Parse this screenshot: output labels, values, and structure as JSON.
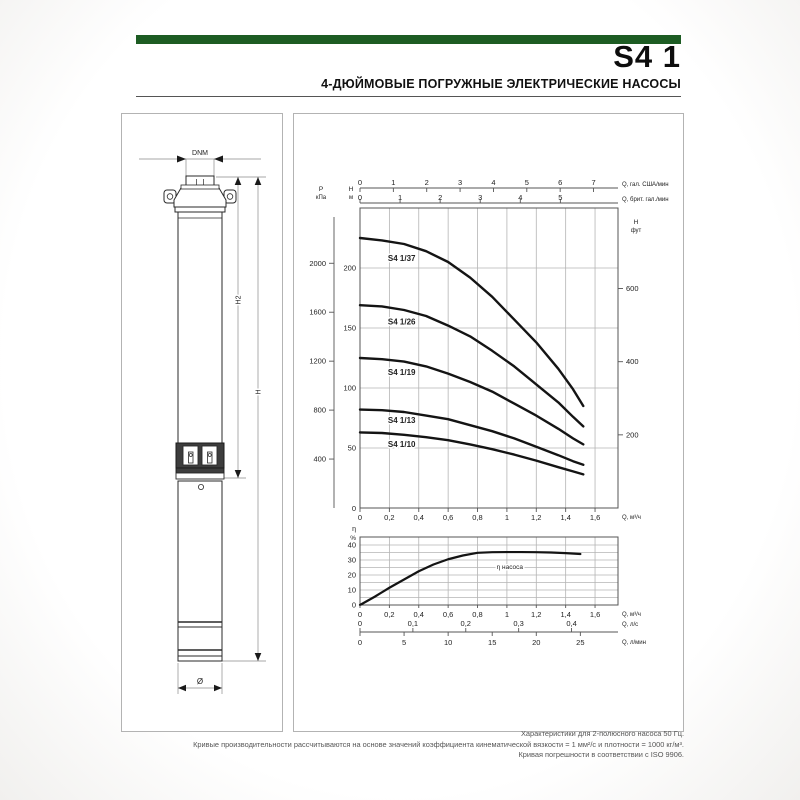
{
  "header": {
    "product": "S4 1",
    "subtitle": "4-ДЮЙМОВЫЕ ПОГРУЖНЫЕ ЭЛЕКТРИЧЕСКИЕ НАСОСЫ",
    "accent_color": "#1d5c23"
  },
  "drawing": {
    "dim_dnm": "DNM",
    "dim_h2": "H2",
    "dim_h": "H",
    "dim_diameter": "Ø"
  },
  "chart_data": [
    {
      "type": "line",
      "title": "Напорные характеристики Q-H",
      "x_axis": {
        "label": "Q, м³/ч",
        "range": [
          0,
          1.756
        ],
        "ticks": [
          {
            "v": 0,
            "t": "0"
          },
          {
            "v": 0.2,
            "t": "0,2"
          },
          {
            "v": 0.4,
            "t": "0,4"
          },
          {
            "v": 0.6,
            "t": "0,6"
          },
          {
            "v": 0.8,
            "t": "0,8"
          },
          {
            "v": 1.0,
            "t": "1"
          },
          {
            "v": 1.2,
            "t": "1,2"
          },
          {
            "v": 1.4,
            "t": "1,4"
          },
          {
            "v": 1.6,
            "t": "1,6"
          }
        ]
      },
      "x_axis_top_us": {
        "label": "Q, гал. США/мин",
        "to_m3h": 0.2271,
        "ticks": [
          0,
          1,
          2,
          3,
          4,
          5,
          6,
          7
        ]
      },
      "x_axis_top_imp": {
        "label": "Q, брит. гал./мин",
        "to_m3h": 0.2728,
        "ticks": [
          0,
          1,
          2,
          3,
          4,
          5
        ]
      },
      "y_axis_m": {
        "label": [
          "H",
          "м"
        ],
        "range": [
          0,
          250
        ],
        "ticks": [
          50,
          100,
          150,
          200
        ],
        "zero": "0"
      },
      "y_axis_kpa": {
        "label": [
          "P",
          "кПа"
        ],
        "to_m": 0.10197,
        "ticks": [
          400,
          800,
          1200,
          1600,
          2000
        ]
      },
      "y_axis_ft": {
        "label": [
          "H",
          "фут"
        ],
        "to_m": 0.3048,
        "ticks": [
          200,
          400,
          600
        ]
      },
      "grid": true,
      "series": [
        {
          "name": "S4 1/37",
          "label_at": [
            0.19,
            206
          ],
          "points": [
            [
              0,
              225
            ],
            [
              0.15,
              223
            ],
            [
              0.3,
              220
            ],
            [
              0.45,
              214
            ],
            [
              0.6,
              205
            ],
            [
              0.75,
              192
            ],
            [
              0.9,
              176
            ],
            [
              1.05,
              157
            ],
            [
              1.2,
              138
            ],
            [
              1.35,
              116
            ],
            [
              1.45,
              99
            ],
            [
              1.52,
              85
            ]
          ]
        },
        {
          "name": "S4 1/26",
          "label_at": [
            0.19,
            153
          ],
          "points": [
            [
              0,
              169
            ],
            [
              0.15,
              168
            ],
            [
              0.3,
              165
            ],
            [
              0.45,
              160
            ],
            [
              0.6,
              152
            ],
            [
              0.75,
              143
            ],
            [
              0.9,
              131
            ],
            [
              1.05,
              118
            ],
            [
              1.2,
              103
            ],
            [
              1.35,
              88
            ],
            [
              1.45,
              76
            ],
            [
              1.52,
              68
            ]
          ]
        },
        {
          "name": "S4 1/19",
          "label_at": [
            0.19,
            111
          ],
          "points": [
            [
              0,
              125
            ],
            [
              0.15,
              124
            ],
            [
              0.3,
              122
            ],
            [
              0.45,
              118
            ],
            [
              0.6,
              112
            ],
            [
              0.75,
              105
            ],
            [
              0.9,
              97
            ],
            [
              1.05,
              87
            ],
            [
              1.2,
              77
            ],
            [
              1.35,
              66
            ],
            [
              1.45,
              58
            ],
            [
              1.52,
              53
            ]
          ]
        },
        {
          "name": "S4 1/13",
          "label_at": [
            0.19,
            71
          ],
          "points": [
            [
              0,
              82
            ],
            [
              0.15,
              81.5
            ],
            [
              0.3,
              80
            ],
            [
              0.45,
              77
            ],
            [
              0.6,
              74
            ],
            [
              0.75,
              69
            ],
            [
              0.9,
              64
            ],
            [
              1.05,
              58
            ],
            [
              1.2,
              51
            ],
            [
              1.35,
              44
            ],
            [
              1.45,
              39
            ],
            [
              1.52,
              36
            ]
          ]
        },
        {
          "name": "S4 1/10",
          "label_at": [
            0.19,
            51
          ],
          "points": [
            [
              0,
              63
            ],
            [
              0.15,
              62.5
            ],
            [
              0.3,
              61
            ],
            [
              0.45,
              59
            ],
            [
              0.6,
              56.5
            ],
            [
              0.75,
              53
            ],
            [
              0.9,
              49
            ],
            [
              1.05,
              44.5
            ],
            [
              1.2,
              39.5
            ],
            [
              1.35,
              34
            ],
            [
              1.45,
              30.5
            ],
            [
              1.52,
              28
            ]
          ]
        }
      ]
    },
    {
      "type": "line",
      "title": "КПД насоса",
      "y_axis": {
        "label": [
          "η",
          "%"
        ],
        "range": [
          0,
          45
        ],
        "ticks": [
          0,
          10,
          20,
          30,
          40
        ],
        "grid_step": 5
      },
      "x_axis": {
        "label": "Q, м³/ч",
        "ticks": [
          {
            "v": 0,
            "t": "0"
          },
          {
            "v": 0.2,
            "t": "0,2"
          },
          {
            "v": 0.4,
            "t": "0,4"
          },
          {
            "v": 0.6,
            "t": "0,6"
          },
          {
            "v": 0.8,
            "t": "0,8"
          },
          {
            "v": 1.0,
            "t": "1"
          },
          {
            "v": 1.2,
            "t": "1,2"
          },
          {
            "v": 1.4,
            "t": "1,4"
          },
          {
            "v": 1.6,
            "t": "1,6"
          }
        ]
      },
      "x_axis_ls": {
        "label": "Q, л/с",
        "to_m3h": 3.6,
        "ticks": [
          {
            "v": 0,
            "t": "0"
          },
          {
            "v": 0.1,
            "t": "0,1"
          },
          {
            "v": 0.2,
            "t": "0,2"
          },
          {
            "v": 0.3,
            "t": "0,3"
          },
          {
            "v": 0.4,
            "t": "0,4"
          }
        ]
      },
      "x_axis_lmin": {
        "label": "Q, л/мин",
        "to_m3h": 0.06,
        "ticks": [
          0,
          5,
          10,
          15,
          20,
          25
        ]
      },
      "series": [
        {
          "name": "η насоса",
          "label_at": [
            1.02,
            24
          ],
          "points": [
            [
              0,
              0
            ],
            [
              0.1,
              5.5
            ],
            [
              0.2,
              11.5
            ],
            [
              0.3,
              17
            ],
            [
              0.4,
              22.5
            ],
            [
              0.5,
              27
            ],
            [
              0.6,
              30.5
            ],
            [
              0.7,
              33
            ],
            [
              0.8,
              34.8
            ],
            [
              0.9,
              35.2
            ],
            [
              1.0,
              35.3
            ],
            [
              1.1,
              35.3
            ],
            [
              1.2,
              35.2
            ],
            [
              1.3,
              35
            ],
            [
              1.4,
              34.6
            ],
            [
              1.5,
              34
            ]
          ]
        }
      ]
    }
  ],
  "footer": {
    "lines": [
      "Характеристики для 2-полюсного насоса 50 Гц.",
      "Кривые производительности рассчитываются на основе значений коэффициента кинематической вязкости = 1 мм²/с и плотности = 1000 кг/м³.",
      "Кривая погрешности в соответствии с ISO 9906."
    ]
  }
}
